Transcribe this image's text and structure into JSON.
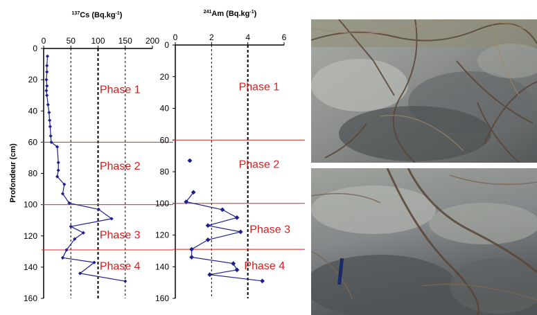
{
  "chart_data": [
    {
      "type": "scatter",
      "title": "",
      "xlabel": "137Cs (Bq.kg-1)",
      "xlabel_sup": "137",
      "xlabel_main": "Cs (Bq.kg",
      "xlabel_exp": "-1",
      "xlabel_end": ")",
      "ylabel": "Profondeur (cm)",
      "xlim": [
        0,
        200
      ],
      "ylim": [
        0,
        160
      ],
      "y_inverted": true,
      "x_ticks": [
        "0",
        "50",
        "100",
        "150",
        "200"
      ],
      "y_ticks": [
        "0",
        "20",
        "40",
        "60",
        "80",
        "100",
        "120",
        "140",
        "160"
      ],
      "x_tick_values": [
        0,
        50,
        100,
        150,
        200
      ],
      "y_tick_values": [
        0,
        20,
        40,
        60,
        80,
        100,
        120,
        140,
        160
      ],
      "x_gridlines": [
        50,
        100,
        150
      ],
      "series": [
        {
          "marker_color": "#1c1f8c",
          "points": [
            {
              "x": 7,
              "y": 5
            },
            {
              "x": 6,
              "y": 11
            },
            {
              "x": 6,
              "y": 15
            },
            {
              "x": 5,
              "y": 20
            },
            {
              "x": 6,
              "y": 24
            },
            {
              "x": 5,
              "y": 27
            },
            {
              "x": 6,
              "y": 30
            },
            {
              "x": 8,
              "y": 36
            },
            {
              "x": 10,
              "y": 41
            },
            {
              "x": 11,
              "y": 46
            },
            {
              "x": 12,
              "y": 50
            },
            {
              "x": 13,
              "y": 56
            },
            {
              "x": 14,
              "y": 60
            },
            {
              "x": 25,
              "y": 63
            },
            {
              "x": 27,
              "y": 73
            },
            {
              "x": 27,
              "y": 78
            },
            {
              "x": 25,
              "y": 82
            },
            {
              "x": 38,
              "y": 87
            },
            {
              "x": 35,
              "y": 93
            },
            {
              "x": 47,
              "y": 99
            },
            {
              "x": 101,
              "y": 103
            },
            {
              "x": 125,
              "y": 109
            },
            {
              "x": 50,
              "y": 114
            },
            {
              "x": 73,
              "y": 118
            },
            {
              "x": 57,
              "y": 122
            },
            {
              "x": 42,
              "y": 129
            },
            {
              "x": 35,
              "y": 134
            },
            {
              "x": 93,
              "y": 137
            },
            {
              "x": 67,
              "y": 144
            },
            {
              "x": 150,
              "y": 149
            }
          ]
        }
      ],
      "phase_lines": [
        60,
        100,
        129
      ],
      "phases": [
        {
          "label": "Phase 1",
          "x": 103,
          "y": 26
        },
        {
          "label": "Phase 2",
          "x": 103,
          "y": 75
        },
        {
          "label": "Phase 3",
          "x": 103,
          "y": 119
        },
        {
          "label": "Phase 4",
          "x": 103,
          "y": 139
        }
      ]
    },
    {
      "type": "scatter",
      "title": "",
      "xlabel": "241Am (Bq.kg-1)",
      "xlabel_sup": "241",
      "xlabel_main": "Am (Bq.kg",
      "xlabel_exp": "-1",
      "xlabel_end": ")",
      "xlim": [
        0,
        6
      ],
      "ylim": [
        0,
        160
      ],
      "y_inverted": true,
      "x_ticks": [
        "0",
        "2",
        "4",
        "6"
      ],
      "y_ticks": [
        "0",
        "20",
        "40",
        "60",
        "80",
        "100",
        "120",
        "140",
        "160"
      ],
      "x_tick_values": [
        0,
        2,
        4,
        6
      ],
      "y_tick_values": [
        0,
        20,
        40,
        60,
        80,
        100,
        120,
        140,
        160
      ],
      "x_gridlines": [
        2,
        4
      ],
      "series": [
        {
          "marker_color": "#1c1f8c",
          "points": [
            {
              "x": 0.8,
              "y": 73
            }
          ]
        },
        {
          "marker_color": "#1c1f8c",
          "points": [
            {
              "x": 1.0,
              "y": 93
            },
            {
              "x": 0.6,
              "y": 99
            },
            {
              "x": 2.6,
              "y": 104
            },
            {
              "x": 3.4,
              "y": 109
            },
            {
              "x": 1.8,
              "y": 114
            },
            {
              "x": 3.6,
              "y": 118
            },
            {
              "x": 1.8,
              "y": 123
            },
            {
              "x": 0.9,
              "y": 129
            },
            {
              "x": 0.9,
              "y": 134
            },
            {
              "x": 3.2,
              "y": 138
            },
            {
              "x": 3.4,
              "y": 142
            },
            {
              "x": 1.9,
              "y": 145
            },
            {
              "x": 4.8,
              "y": 149
            }
          ]
        }
      ],
      "phase_lines": [
        60,
        100,
        129
      ],
      "phases": [
        {
          "label": "Phase 1",
          "x": 3.5,
          "y": 26
        },
        {
          "label": "Phase 2",
          "x": 3.5,
          "y": 75
        },
        {
          "label": "Phase 3",
          "x": 4.1,
          "y": 116
        },
        {
          "label": "Phase 4",
          "x": 3.8,
          "y": 139
        }
      ]
    }
  ],
  "colors": {
    "marker": "#1c1f8c",
    "line": "#1c1f8c",
    "phase_line": "#e02020",
    "phase_text": "#d81e1e",
    "photo_tone": "#7f8281"
  }
}
